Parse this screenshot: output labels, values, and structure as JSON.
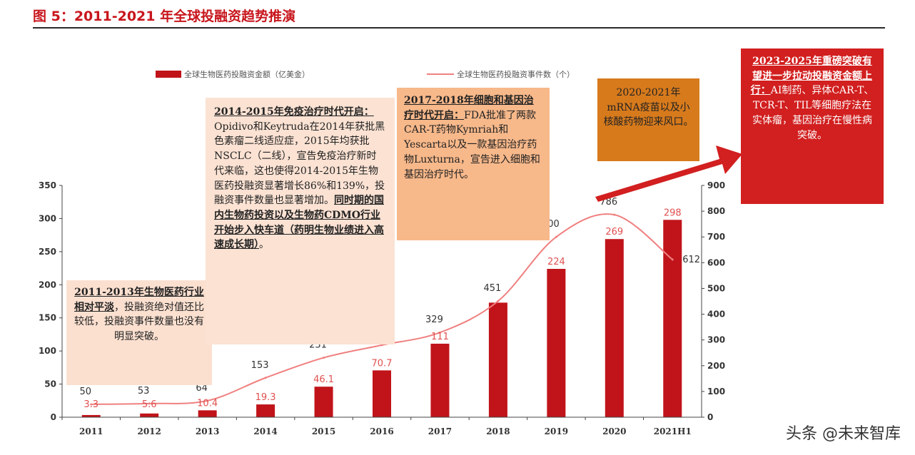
{
  "page": {
    "title": "图 5：2011-2021 年全球投融资趋势推演",
    "watermark": "头条 @未来智库"
  },
  "notes": {
    "n1": {
      "bold": "2011-2013年生物医药行业相对平淡",
      "text": "，投融资绝对值还比较低，投融资事件数量也没有明显突破。"
    },
    "n2": {
      "bold1": "2014-2015年免疫治疗时代开启：",
      "text": "Opidivo和Keytruda在2014年获批黑色素瘤二线适应症，2015年均获批NSCLC（二线），宣告免疫治疗新时代来临，这也使得2014-2015年生物医药投融资显著增长86%和139%，投融资事件数量也显著增加。",
      "bold2": "同时期的国内生物药投资以及生物药CDMO行业开始步入快车道（药明生物业绩进入高速成长期）",
      "tail": "。"
    },
    "n3": {
      "bold": "2017-2018年细胞和基因治疗时代开启：",
      "text": "FDA批准了两款CAR-T药物Kymriah和Yescarta以及一款基因治疗药物Luxturna，宣告进入细胞和基因治疗时代。"
    },
    "n4": {
      "text": "2020-2021年mRNA疫苗以及小核酸药物迎来风口。"
    },
    "n5": {
      "bold": "2023-2025年重磅突破有望进一步拉动投融资金额上行：",
      "text": "AI制药、异体CAR-T、TCR-T、TIL等细胞疗法在实体瘤，基因治疗在慢性病突破。"
    }
  },
  "chart_data": {
    "type": "bar",
    "categories": [
      "2011",
      "2012",
      "2013",
      "2014",
      "2015",
      "2016",
      "2017",
      "2018",
      "2019",
      "2020",
      "2021H1"
    ],
    "series": [
      {
        "name": "全球生物医药投融资金额（亿美金）",
        "type": "bar",
        "axis": "left",
        "values": [
          3.3,
          5.6,
          10.4,
          19.3,
          46.1,
          70.7,
          111,
          173,
          224,
          269,
          298
        ],
        "labels": [
          "3.3",
          "5.6",
          "10.4",
          "19.3",
          "46.1",
          "70.7",
          "111",
          "",
          "224",
          "269",
          "298"
        ]
      },
      {
        "name": "全球生物医药投融资事件数（个）",
        "type": "line",
        "axis": "right",
        "values": [
          50,
          53,
          64,
          153,
          231,
          280,
          329,
          451,
          700,
          786,
          612
        ],
        "labels": [
          "50",
          "53",
          "64",
          "153",
          "231",
          "",
          "329",
          "451",
          "700",
          "786",
          "612"
        ]
      }
    ],
    "y_left": {
      "min": 0,
      "max": 350,
      "ticks": [
        "0",
        "50",
        "100",
        "150",
        "200",
        "250",
        "300",
        "350"
      ]
    },
    "y_right": {
      "min": 0,
      "max": 900,
      "ticks": [
        "0",
        "100",
        "200",
        "300",
        "400",
        "500",
        "600",
        "700",
        "800",
        "900"
      ]
    },
    "colors": {
      "bar": "#c0141a",
      "line": "#f08080",
      "bar_label": "#e05050",
      "arrow": "#d21f1f"
    },
    "legend": "top"
  }
}
